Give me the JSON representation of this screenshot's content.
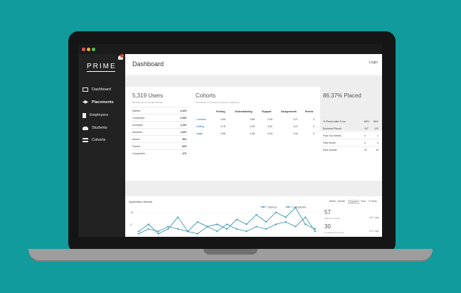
{
  "window": {
    "dot_colors": [
      "#e05a4f",
      "#e7b243",
      "#5bc055"
    ]
  },
  "sidebar": {
    "logo": "PRIME",
    "items": [
      {
        "label": "Dashboard",
        "icon": "dashboard-icon"
      },
      {
        "label": "Placements",
        "icon": "graduation-cap-icon"
      },
      {
        "label": "Employers",
        "icon": "building-icon"
      },
      {
        "label": "Students",
        "icon": "users-icon"
      },
      {
        "label": "Cohorts",
        "icon": "institution-icon"
      }
    ]
  },
  "header": {
    "title": "Dashboard",
    "login": "Login"
  },
  "users": {
    "title": "5,319 Users",
    "subtitle": "85 new users in the last 30 days.",
    "rows": [
      {
        "label": "Started",
        "value": "4,425"
      },
      {
        "label": "Completed",
        "value": "2,339"
      },
      {
        "label": "Accepted",
        "value": "1,100"
      },
      {
        "label": "Students",
        "value": "1,000"
      },
      {
        "label": "Alumni",
        "value": "384"
      },
      {
        "label": "Placed",
        "value": "819"
      },
      {
        "label": "Companies",
        "value": "470"
      }
    ]
  },
  "cohorts": {
    "title": "Cohorts",
    "subtitle": "45 students in 3 cohorts currently in classroom.",
    "columns": [
      "Feeling",
      "Understanding",
      "Support",
      "Assignments",
      "Events"
    ],
    "rows": [
      {
        "name": "Lovelace",
        "values": [
          "3.66",
          "3.85",
          "4.05",
          "3.27",
          "0"
        ]
      },
      {
        "name": "Hetting",
        "values": [
          "3.75",
          "4.05",
          "4.02",
          "4.07",
          "0"
        ]
      },
      {
        "name": "Nagle",
        "values": [
          "3.56",
          "3.48",
          "4.04",
          "3.34",
          "0"
        ]
      }
    ]
  },
  "placed": {
    "title": "86.37% Placed",
    "rows": [
      {
        "label": "% Placed after 6 mo.",
        "v1": "86%",
        "v2": "86%"
      },
      {
        "label": "Business Placed",
        "v1": "497",
        "v2": "122"
      },
      {
        "label": "Past Two Weeks",
        "v1": "0",
        "v2": "1"
      },
      {
        "label": "Past Month",
        "v1": "4",
        "v2": "4"
      },
      {
        "label": "Past Quarter",
        "v1": "22",
        "v2": "15"
      }
    ]
  },
  "activity": {
    "title": "Application Activity",
    "ranges": [
      "Week",
      "Month",
      "Quarter",
      "Year",
      "3 Years"
    ],
    "selected_range": "Quarter",
    "summary": [
      {
        "number": "57",
        "label": "Started in period",
        "rate": "0.6 / day"
      },
      {
        "number": "30",
        "label": "Completed in period",
        "rate": "0.3 / day"
      }
    ]
  },
  "chart_data": {
    "type": "line",
    "legend": [
      "Started",
      "Completed"
    ],
    "yticks": [
      "10",
      "5"
    ],
    "series": [
      {
        "name": "Started",
        "color": "#2a8fa6",
        "values": [
          2,
          5,
          1,
          3,
          8,
          2,
          6,
          4,
          5,
          3,
          7,
          5,
          9,
          6,
          10,
          8,
          12,
          5,
          3
        ]
      },
      {
        "name": "Completed",
        "color": "#2a8fa6",
        "values": [
          1,
          3,
          2,
          4,
          3,
          2,
          1,
          4,
          2,
          5,
          3,
          2,
          4,
          3,
          5,
          6,
          4,
          8,
          2
        ]
      }
    ]
  }
}
